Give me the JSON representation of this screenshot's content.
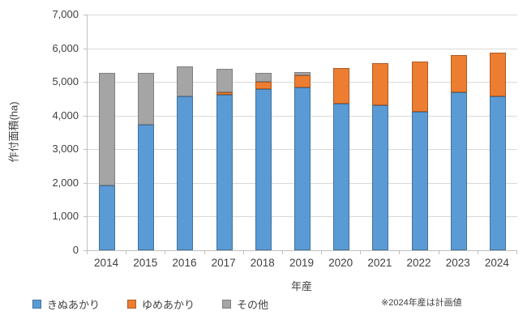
{
  "chart_data": {
    "type": "bar",
    "stacked": true,
    "categories": [
      "2014",
      "2015",
      "2016",
      "2017",
      "2018",
      "2019",
      "2020",
      "2021",
      "2022",
      "2023",
      "2024"
    ],
    "series": [
      {
        "name": "きぬあかり",
        "color": "#5b9bd5",
        "border": "#41719c",
        "values": [
          1920,
          3720,
          4570,
          4620,
          4780,
          4830,
          4360,
          4310,
          4110,
          4680,
          4580
        ]
      },
      {
        "name": "ゆめあかり",
        "color": "#ed7d31",
        "border": "#ae5a21",
        "values": [
          0,
          0,
          0,
          70,
          220,
          360,
          1060,
          1250,
          1490,
          1110,
          1290
        ]
      },
      {
        "name": "その他",
        "color": "#a5a5a5",
        "border": "#7f7f7f",
        "values": [
          3360,
          1550,
          880,
          710,
          280,
          100,
          0,
          0,
          0,
          0,
          0
        ]
      }
    ],
    "xlabel": "年産",
    "ylabel": "作付面積(ha)",
    "ylim": [
      0,
      7000
    ],
    "ytick_step": 1000,
    "ytick_labels": [
      "0",
      "1,000",
      "2,000",
      "3,000",
      "4,000",
      "5,000",
      "6,000",
      "7,000"
    ],
    "grid": true,
    "legend_position": "bottom-left",
    "note": "※2024年産は計画値"
  }
}
